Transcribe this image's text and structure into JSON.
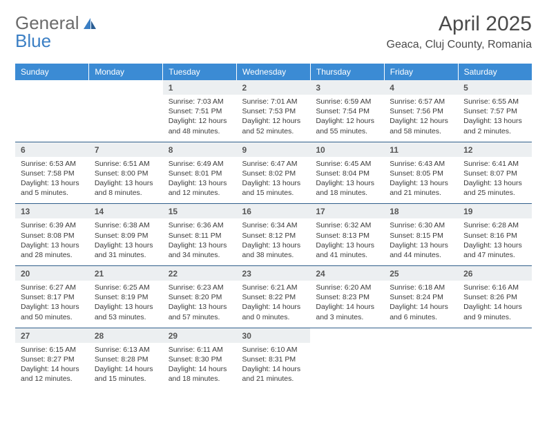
{
  "logo": {
    "text1": "General",
    "text2": "Blue"
  },
  "title": "April 2025",
  "location": "Geaca, Cluj County, Romania",
  "colors": {
    "header_bg": "#3b8bd4",
    "header_text": "#ffffff",
    "numrow_bg": "#eceff1",
    "border": "#2f5e8a",
    "logo_gray": "#6b6b6b",
    "logo_blue": "#3b7fc4"
  },
  "weekdays": [
    "Sunday",
    "Monday",
    "Tuesday",
    "Wednesday",
    "Thursday",
    "Friday",
    "Saturday"
  ],
  "weeks": [
    [
      null,
      null,
      {
        "n": "1",
        "sr": "Sunrise: 7:03 AM",
        "ss": "Sunset: 7:51 PM",
        "dl": "Daylight: 12 hours and 48 minutes."
      },
      {
        "n": "2",
        "sr": "Sunrise: 7:01 AM",
        "ss": "Sunset: 7:53 PM",
        "dl": "Daylight: 12 hours and 52 minutes."
      },
      {
        "n": "3",
        "sr": "Sunrise: 6:59 AM",
        "ss": "Sunset: 7:54 PM",
        "dl": "Daylight: 12 hours and 55 minutes."
      },
      {
        "n": "4",
        "sr": "Sunrise: 6:57 AM",
        "ss": "Sunset: 7:56 PM",
        "dl": "Daylight: 12 hours and 58 minutes."
      },
      {
        "n": "5",
        "sr": "Sunrise: 6:55 AM",
        "ss": "Sunset: 7:57 PM",
        "dl": "Daylight: 13 hours and 2 minutes."
      }
    ],
    [
      {
        "n": "6",
        "sr": "Sunrise: 6:53 AM",
        "ss": "Sunset: 7:58 PM",
        "dl": "Daylight: 13 hours and 5 minutes."
      },
      {
        "n": "7",
        "sr": "Sunrise: 6:51 AM",
        "ss": "Sunset: 8:00 PM",
        "dl": "Daylight: 13 hours and 8 minutes."
      },
      {
        "n": "8",
        "sr": "Sunrise: 6:49 AM",
        "ss": "Sunset: 8:01 PM",
        "dl": "Daylight: 13 hours and 12 minutes."
      },
      {
        "n": "9",
        "sr": "Sunrise: 6:47 AM",
        "ss": "Sunset: 8:02 PM",
        "dl": "Daylight: 13 hours and 15 minutes."
      },
      {
        "n": "10",
        "sr": "Sunrise: 6:45 AM",
        "ss": "Sunset: 8:04 PM",
        "dl": "Daylight: 13 hours and 18 minutes."
      },
      {
        "n": "11",
        "sr": "Sunrise: 6:43 AM",
        "ss": "Sunset: 8:05 PM",
        "dl": "Daylight: 13 hours and 21 minutes."
      },
      {
        "n": "12",
        "sr": "Sunrise: 6:41 AM",
        "ss": "Sunset: 8:07 PM",
        "dl": "Daylight: 13 hours and 25 minutes."
      }
    ],
    [
      {
        "n": "13",
        "sr": "Sunrise: 6:39 AM",
        "ss": "Sunset: 8:08 PM",
        "dl": "Daylight: 13 hours and 28 minutes."
      },
      {
        "n": "14",
        "sr": "Sunrise: 6:38 AM",
        "ss": "Sunset: 8:09 PM",
        "dl": "Daylight: 13 hours and 31 minutes."
      },
      {
        "n": "15",
        "sr": "Sunrise: 6:36 AM",
        "ss": "Sunset: 8:11 PM",
        "dl": "Daylight: 13 hours and 34 minutes."
      },
      {
        "n": "16",
        "sr": "Sunrise: 6:34 AM",
        "ss": "Sunset: 8:12 PM",
        "dl": "Daylight: 13 hours and 38 minutes."
      },
      {
        "n": "17",
        "sr": "Sunrise: 6:32 AM",
        "ss": "Sunset: 8:13 PM",
        "dl": "Daylight: 13 hours and 41 minutes."
      },
      {
        "n": "18",
        "sr": "Sunrise: 6:30 AM",
        "ss": "Sunset: 8:15 PM",
        "dl": "Daylight: 13 hours and 44 minutes."
      },
      {
        "n": "19",
        "sr": "Sunrise: 6:28 AM",
        "ss": "Sunset: 8:16 PM",
        "dl": "Daylight: 13 hours and 47 minutes."
      }
    ],
    [
      {
        "n": "20",
        "sr": "Sunrise: 6:27 AM",
        "ss": "Sunset: 8:17 PM",
        "dl": "Daylight: 13 hours and 50 minutes."
      },
      {
        "n": "21",
        "sr": "Sunrise: 6:25 AM",
        "ss": "Sunset: 8:19 PM",
        "dl": "Daylight: 13 hours and 53 minutes."
      },
      {
        "n": "22",
        "sr": "Sunrise: 6:23 AM",
        "ss": "Sunset: 8:20 PM",
        "dl": "Daylight: 13 hours and 57 minutes."
      },
      {
        "n": "23",
        "sr": "Sunrise: 6:21 AM",
        "ss": "Sunset: 8:22 PM",
        "dl": "Daylight: 14 hours and 0 minutes."
      },
      {
        "n": "24",
        "sr": "Sunrise: 6:20 AM",
        "ss": "Sunset: 8:23 PM",
        "dl": "Daylight: 14 hours and 3 minutes."
      },
      {
        "n": "25",
        "sr": "Sunrise: 6:18 AM",
        "ss": "Sunset: 8:24 PM",
        "dl": "Daylight: 14 hours and 6 minutes."
      },
      {
        "n": "26",
        "sr": "Sunrise: 6:16 AM",
        "ss": "Sunset: 8:26 PM",
        "dl": "Daylight: 14 hours and 9 minutes."
      }
    ],
    [
      {
        "n": "27",
        "sr": "Sunrise: 6:15 AM",
        "ss": "Sunset: 8:27 PM",
        "dl": "Daylight: 14 hours and 12 minutes."
      },
      {
        "n": "28",
        "sr": "Sunrise: 6:13 AM",
        "ss": "Sunset: 8:28 PM",
        "dl": "Daylight: 14 hours and 15 minutes."
      },
      {
        "n": "29",
        "sr": "Sunrise: 6:11 AM",
        "ss": "Sunset: 8:30 PM",
        "dl": "Daylight: 14 hours and 18 minutes."
      },
      {
        "n": "30",
        "sr": "Sunrise: 6:10 AM",
        "ss": "Sunset: 8:31 PM",
        "dl": "Daylight: 14 hours and 21 minutes."
      },
      null,
      null,
      null
    ]
  ]
}
